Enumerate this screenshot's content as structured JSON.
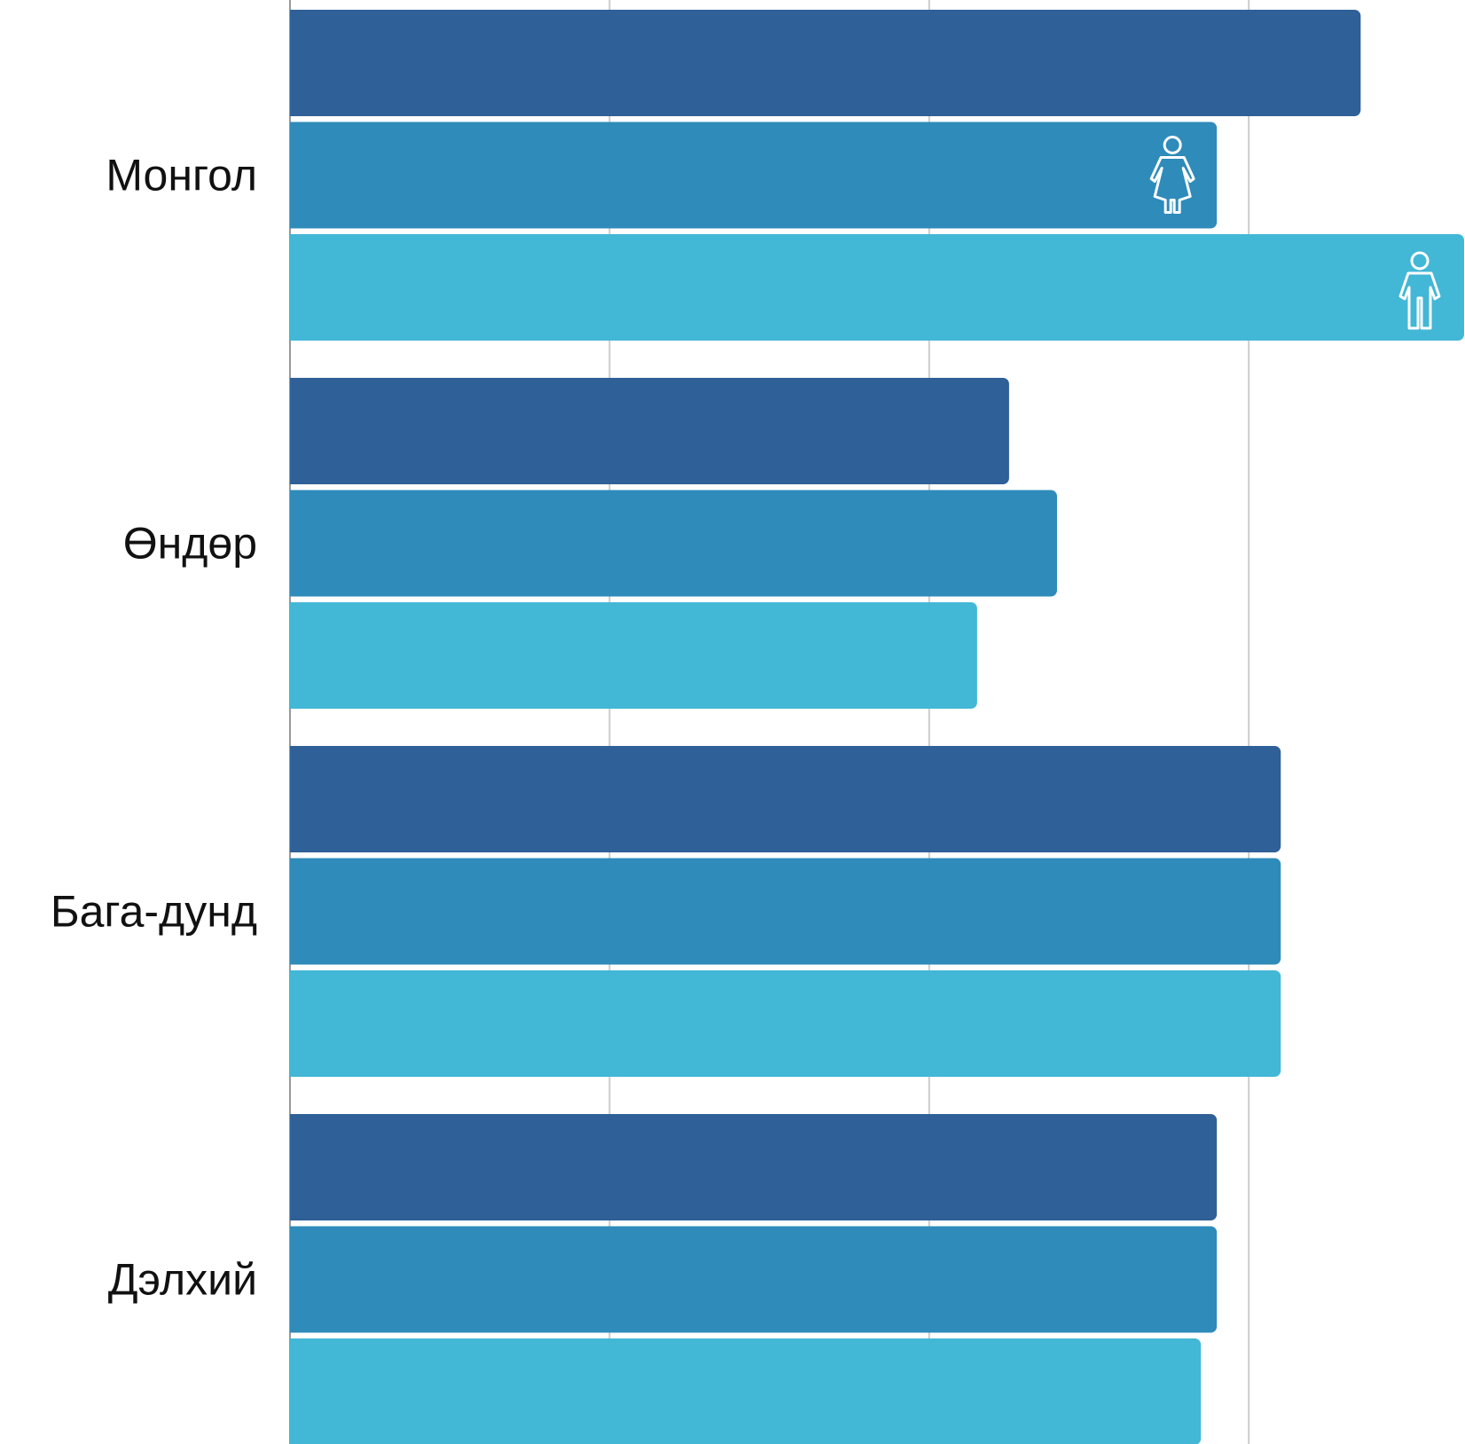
{
  "chart_data": {
    "type": "bar",
    "orientation": "horizontal",
    "categories": [
      "Монгол",
      "Өндөр",
      "Бага-дунд",
      "Дэлхий"
    ],
    "series": [
      {
        "values": [
          67,
          45,
          62,
          58
        ],
        "color": "#2f6097"
      },
      {
        "values": [
          58,
          48,
          62,
          58
        ],
        "color": "#2e8bba",
        "icon": "female-icon"
      },
      {
        "values": [
          75,
          43,
          62,
          57
        ],
        "color": "#43b7d6",
        "icon": "male-icon"
      }
    ],
    "xlim": [
      0,
      75
    ],
    "grid": true,
    "gridline_values": [
      20,
      40,
      60
    ],
    "icons_on_category": 0
  }
}
